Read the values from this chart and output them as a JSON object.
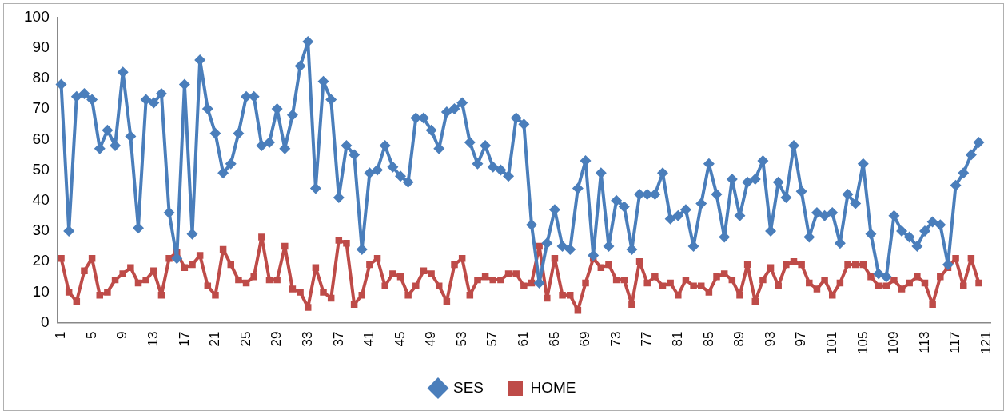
{
  "chart_data": {
    "type": "line",
    "categories": [
      "1",
      null,
      null,
      null,
      "5",
      null,
      null,
      null,
      "9",
      null,
      null,
      null,
      "13",
      null,
      null,
      null,
      "17",
      null,
      null,
      null,
      "21",
      null,
      null,
      null,
      "25",
      null,
      null,
      null,
      "29",
      null,
      null,
      null,
      "33",
      null,
      null,
      null,
      "37",
      null,
      null,
      null,
      "41",
      null,
      null,
      null,
      "45",
      null,
      null,
      null,
      "49",
      null,
      null,
      null,
      "53",
      null,
      null,
      null,
      "57",
      null,
      null,
      null,
      "61",
      null,
      null,
      null,
      "65",
      null,
      null,
      null,
      "69",
      null,
      null,
      null,
      "73",
      null,
      null,
      null,
      "77",
      null,
      null,
      null,
      "81",
      null,
      null,
      null,
      "85",
      null,
      null,
      null,
      "89",
      null,
      null,
      null,
      "93",
      null,
      null,
      null,
      "97",
      null,
      null,
      null,
      "101",
      null,
      null,
      null,
      "105",
      null,
      null,
      null,
      "109",
      null,
      null,
      null,
      "113",
      null,
      null,
      null,
      "117",
      null,
      null,
      null,
      "121"
    ],
    "series": [
      {
        "name": "SES",
        "color": "#4a7ebb",
        "marker": "diamond",
        "values": [
          78,
          30,
          74,
          75,
          73,
          57,
          63,
          58,
          82,
          61,
          31,
          73,
          72,
          75,
          36,
          21,
          78,
          29,
          86,
          70,
          62,
          49,
          52,
          62,
          74,
          74,
          58,
          59,
          70,
          57,
          68,
          84,
          92,
          44,
          79,
          73,
          41,
          58,
          55,
          24,
          49,
          50,
          58,
          51,
          48,
          46,
          67,
          67,
          63,
          57,
          69,
          70,
          72,
          59,
          52,
          58,
          51,
          50,
          48,
          67,
          65,
          32,
          13,
          26,
          37,
          25,
          24,
          44,
          53,
          22,
          49,
          25,
          40,
          38,
          24,
          42,
          42,
          42,
          49,
          34,
          35,
          37,
          25,
          39,
          52,
          42,
          28,
          47,
          35,
          46,
          47,
          53,
          30,
          46,
          41,
          58,
          43,
          28,
          36,
          35,
          36,
          26,
          42,
          39,
          52,
          29,
          16,
          15,
          35,
          30,
          28,
          25,
          30,
          33,
          32,
          19,
          45,
          49,
          55,
          59,
          null
        ]
      },
      {
        "name": "HOME",
        "color": "#be4b48",
        "marker": "square",
        "values": [
          21,
          10,
          7,
          17,
          21,
          9,
          10,
          14,
          16,
          18,
          13,
          14,
          17,
          9,
          21,
          23,
          18,
          19,
          22,
          12,
          9,
          24,
          19,
          14,
          13,
          15,
          28,
          14,
          14,
          25,
          11,
          10,
          5,
          18,
          10,
          8,
          27,
          26,
          6,
          9,
          19,
          21,
          12,
          16,
          15,
          9,
          12,
          17,
          16,
          12,
          7,
          19,
          21,
          9,
          14,
          15,
          14,
          14,
          16,
          16,
          12,
          13,
          25,
          8,
          21,
          9,
          9,
          4,
          13,
          21,
          18,
          19,
          14,
          14,
          6,
          20,
          13,
          15,
          12,
          13,
          9,
          14,
          12,
          12,
          10,
          15,
          16,
          14,
          9,
          19,
          7,
          14,
          18,
          12,
          19,
          20,
          19,
          13,
          11,
          14,
          9,
          13,
          19,
          19,
          19,
          15,
          12,
          12,
          14,
          11,
          13,
          15,
          13,
          6,
          15,
          18,
          21,
          12,
          21,
          13,
          null
        ]
      }
    ],
    "ylim": [
      0,
      100
    ],
    "yticks": [
      0,
      10,
      20,
      30,
      40,
      50,
      60,
      70,
      80,
      90,
      100
    ],
    "grid": false,
    "legend": "bottom",
    "line_style": "solid"
  }
}
